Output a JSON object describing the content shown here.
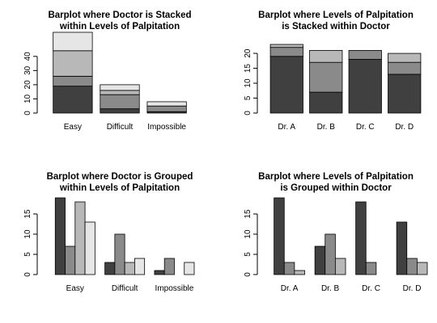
{
  "palette": [
    "#404040",
    "#8a8a8a",
    "#b8b8b8",
    "#e6e6e6"
  ],
  "chart_data": [
    {
      "type": "bar",
      "mode": "stacked",
      "title": [
        "Barplot where Doctor is Stacked",
        "within Levels of Palpitation"
      ],
      "categories": [
        "Easy",
        "Difficult",
        "Impossible"
      ],
      "series": [
        {
          "values": [
            19,
            3,
            1
          ]
        },
        {
          "values": [
            7,
            10,
            4
          ]
        },
        {
          "values": [
            18,
            3,
            0
          ]
        },
        {
          "values": [
            13,
            4,
            3
          ]
        }
      ],
      "ylim": [
        0,
        57
      ],
      "yticks": [
        0,
        10,
        20,
        30,
        40
      ]
    },
    {
      "type": "bar",
      "mode": "stacked",
      "title": [
        "Barplot where Levels of Palpitation",
        "is Stacked within Doctor"
      ],
      "categories": [
        "Dr. A",
        "Dr. B",
        "Dr. C",
        "Dr. D"
      ],
      "series": [
        {
          "values": [
            19,
            7,
            18,
            13
          ]
        },
        {
          "values": [
            3,
            10,
            3,
            4
          ]
        },
        {
          "values": [
            1,
            4,
            0,
            3
          ]
        }
      ],
      "ylim": [
        0,
        23
      ],
      "yticks": [
        0,
        5,
        10,
        15,
        20
      ]
    },
    {
      "type": "bar",
      "mode": "grouped",
      "title": [
        "Barplot where Doctor is Grouped",
        "within Levels of Palpitation"
      ],
      "categories": [
        "Easy",
        "Difficult",
        "Impossible"
      ],
      "series": [
        {
          "values": [
            19,
            3,
            1
          ]
        },
        {
          "values": [
            7,
            10,
            4
          ]
        },
        {
          "values": [
            18,
            3,
            0
          ]
        },
        {
          "values": [
            13,
            4,
            3
          ]
        }
      ],
      "ylim": [
        0,
        19
      ],
      "yticks": [
        0,
        5,
        10,
        15
      ]
    },
    {
      "type": "bar",
      "mode": "grouped",
      "title": [
        "Barplot where Levels of Palpitation",
        "is Grouped within Doctor"
      ],
      "categories": [
        "Dr. A",
        "Dr. B",
        "Dr. C",
        "Dr. D"
      ],
      "series": [
        {
          "values": [
            19,
            7,
            18,
            13
          ]
        },
        {
          "values": [
            3,
            10,
            3,
            4
          ]
        },
        {
          "values": [
            1,
            4,
            0,
            3
          ]
        }
      ],
      "ylim": [
        0,
        19
      ],
      "yticks": [
        0,
        5,
        10,
        15
      ]
    }
  ]
}
